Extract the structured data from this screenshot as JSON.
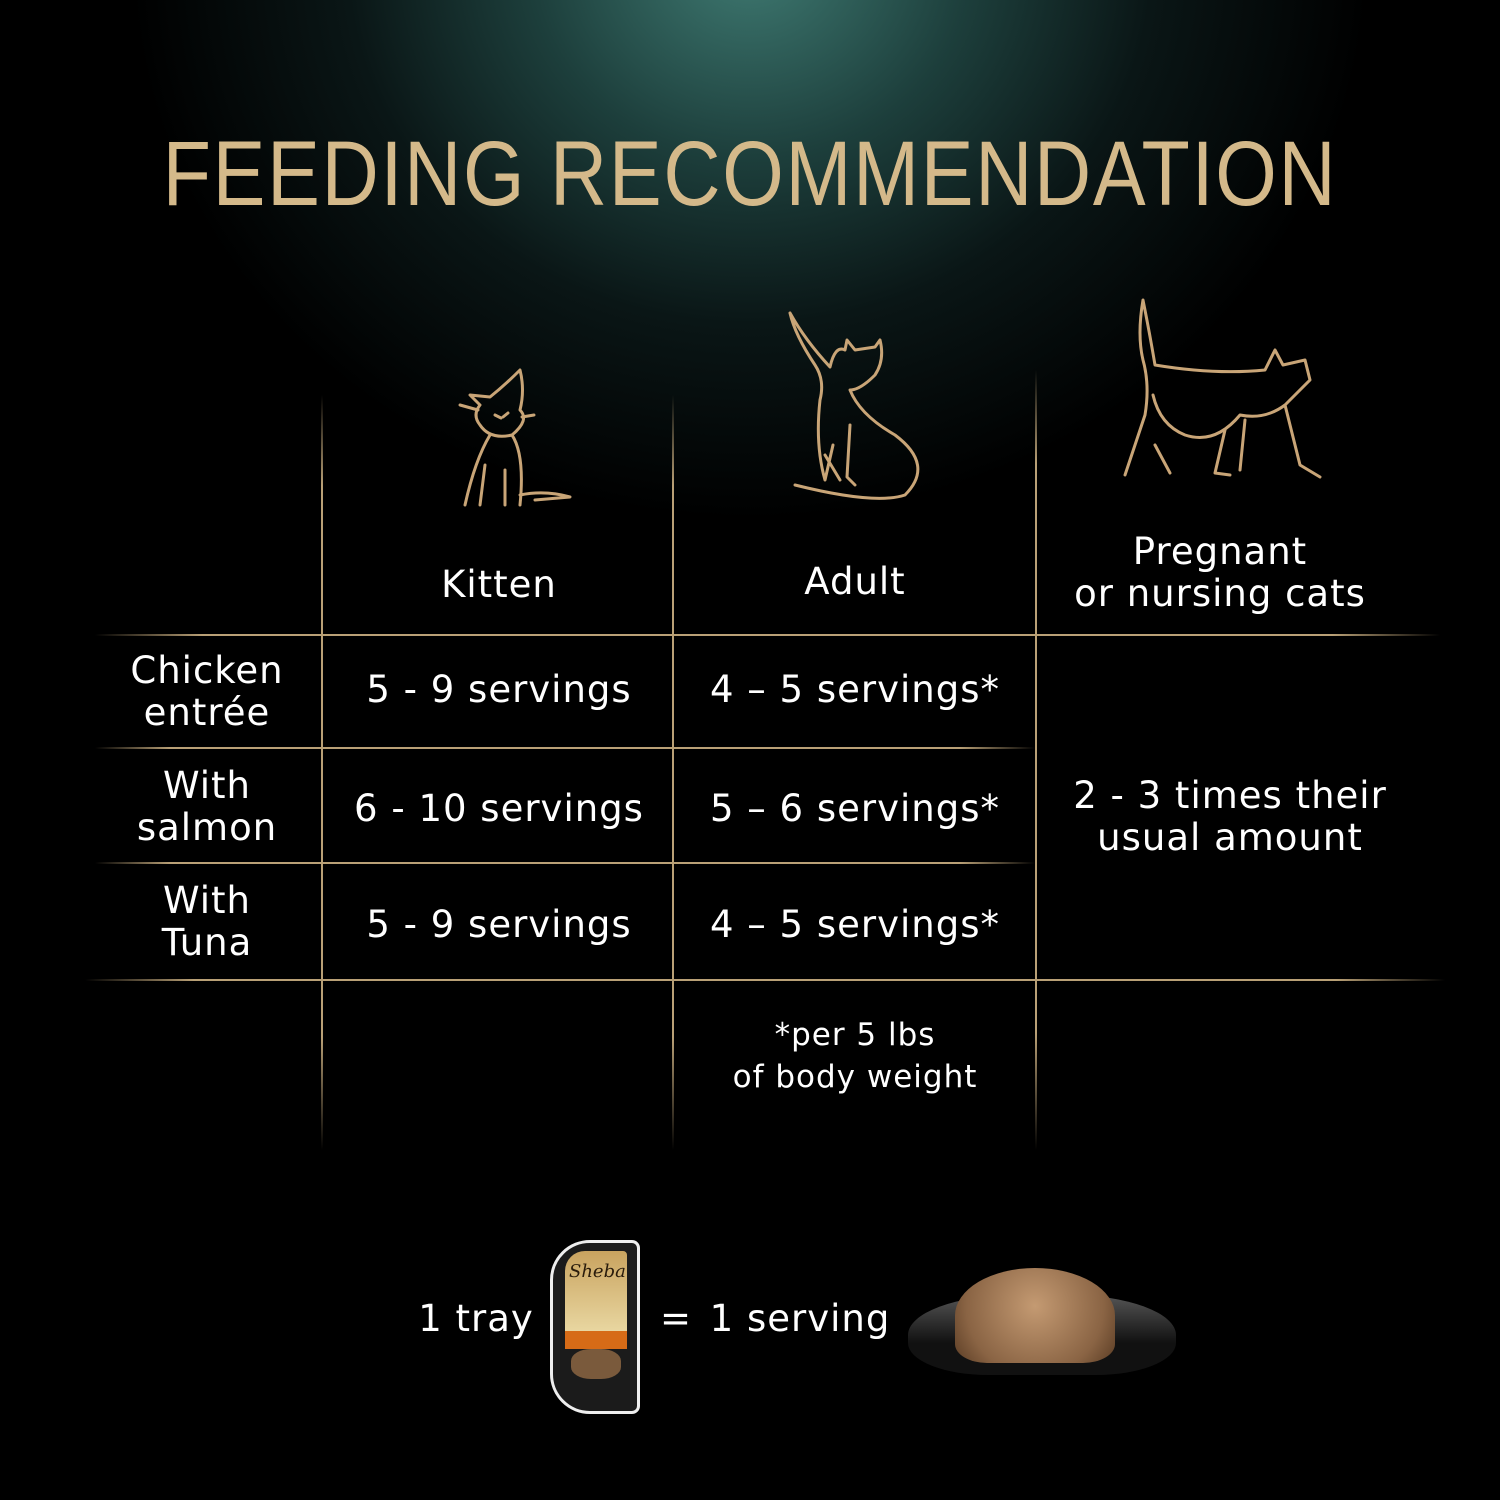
{
  "title": "FEEDING RECOMMENDATION",
  "columns": [
    {
      "icon": "kitten-icon",
      "label_lines": [
        "Kitten"
      ]
    },
    {
      "icon": "adult-cat-icon",
      "label_lines": [
        "Adult"
      ]
    },
    {
      "icon": "pregnant-cat-icon",
      "label_lines": [
        "Pregnant",
        "or nursing cats"
      ]
    }
  ],
  "rows": [
    {
      "label_lines": [
        "Chicken",
        "entrée"
      ],
      "kitten": "5 - 9 servings",
      "adult": "4 – 5 servings*"
    },
    {
      "label_lines": [
        "With",
        "salmon"
      ],
      "kitten": "6 - 10  servings",
      "adult": "5 – 6 servings*"
    },
    {
      "label_lines": [
        "With",
        "Tuna"
      ],
      "kitten": "5 - 9 servings",
      "adult": "4 – 5 servings*"
    }
  ],
  "pregnant_value_lines": [
    "2 - 3 times their",
    "usual amount"
  ],
  "footnote_lines": [
    "*per 5 lbs",
    "of body weight"
  ],
  "equation": {
    "left": "1 tray",
    "equals": "=",
    "right": "1 serving",
    "tray_brand": "Sheba"
  },
  "colors": {
    "gold": "#d4b98a",
    "line": "#b9a076",
    "accent_teal": "#3f7a72"
  }
}
